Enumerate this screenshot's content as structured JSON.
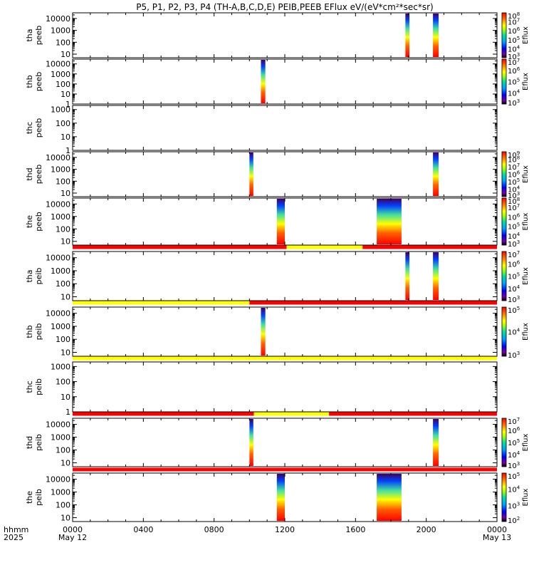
{
  "chart_data": {
    "type": "heatmap",
    "title": "P5, P1, P2, P3, P4 (TH-A,B,C,D,E) PEIB,PEEB EFlux eV/(eV*cm²*sec*sr)",
    "x_axis": {
      "label_line1": "hhmm",
      "label_line2": "2025",
      "range_hours": [
        0,
        24
      ],
      "ticks": [
        {
          "hour": 0,
          "label": "0000",
          "sublabel": "May 12"
        },
        {
          "hour": 4,
          "label": "0400",
          "sublabel": ""
        },
        {
          "hour": 8,
          "label": "0800",
          "sublabel": ""
        },
        {
          "hour": 12,
          "label": "1200",
          "sublabel": ""
        },
        {
          "hour": 16,
          "label": "1600",
          "sublabel": ""
        },
        {
          "hour": 20,
          "label": "2000",
          "sublabel": ""
        },
        {
          "hour": 24,
          "label": "0000",
          "sublabel": "May 13"
        }
      ]
    },
    "colorbar_label": "Eflux",
    "log_y": true,
    "panels": [
      {
        "probe": "tha",
        "instrument": "peeb",
        "ylim": [
          5,
          30000
        ],
        "yticks": [
          10,
          100,
          1000,
          10000
        ],
        "colorbar": {
          "min_exp": 3,
          "max_exp": 8
        },
        "bursts": [
          [
            18.82,
            19.05
          ],
          [
            20.38,
            20.7
          ]
        ]
      },
      {
        "probe": "thb",
        "instrument": "peeb",
        "ylim": [
          1,
          30000
        ],
        "yticks": [
          1,
          10,
          100,
          1000,
          10000
        ],
        "colorbar": {
          "min_exp": 3,
          "max_exp": 7
        },
        "bursts": [
          [
            10.65,
            10.9
          ]
        ]
      },
      {
        "probe": "thc",
        "instrument": "peeb",
        "ylim": [
          1,
          2000
        ],
        "yticks": [
          1,
          10,
          100,
          1000
        ],
        "colorbar": null,
        "bursts": []
      },
      {
        "probe": "thd",
        "instrument": "peeb",
        "ylim": [
          5,
          30000
        ],
        "yticks": [
          10,
          100,
          1000,
          10000
        ],
        "colorbar": {
          "min_exp": 3,
          "max_exp": 9
        },
        "bursts": [
          [
            10.0,
            10.22
          ],
          [
            20.38,
            20.7
          ]
        ]
      },
      {
        "probe": "the",
        "instrument": "peeb",
        "ylim": [
          5,
          30000
        ],
        "yticks": [
          10,
          100,
          1000,
          10000
        ],
        "colorbar": {
          "min_exp": 3,
          "max_exp": 8
        },
        "bursts": [
          [
            11.55,
            12.0
          ],
          [
            17.2,
            18.6
          ]
        ],
        "status_bar": [
          {
            "from": 0,
            "to": 12.1,
            "color": "red"
          },
          {
            "from": 12.1,
            "to": 16.4,
            "color": "yellow"
          },
          {
            "from": 16.4,
            "to": 24,
            "color": "red"
          }
        ]
      },
      {
        "probe": "tha",
        "instrument": "peib",
        "ylim": [
          5,
          30000
        ],
        "yticks": [
          10,
          100,
          1000,
          10000
        ],
        "colorbar": {
          "min_exp": 3,
          "max_exp": 7
        },
        "bursts": [
          [
            18.82,
            19.05
          ],
          [
            20.38,
            20.7
          ]
        ],
        "status_bar": [
          {
            "from": 0,
            "to": 10.0,
            "color": "yellow"
          },
          {
            "from": 10.0,
            "to": 24,
            "color": "red"
          }
        ]
      },
      {
        "probe": "thb",
        "instrument": "peib",
        "ylim": [
          5,
          30000
        ],
        "yticks": [
          10,
          100,
          1000,
          10000
        ],
        "colorbar": {
          "min_exp": 3,
          "max_exp": 5
        },
        "bursts": [
          [
            10.65,
            10.9
          ]
        ],
        "status_bar": [
          {
            "from": 0,
            "to": 24,
            "color": "yellow"
          }
        ]
      },
      {
        "probe": "thc",
        "instrument": "peib",
        "ylim": [
          1,
          2000
        ],
        "yticks": [
          1,
          10,
          100,
          1000
        ],
        "colorbar": null,
        "bursts": [],
        "status_bar": [
          {
            "from": 0,
            "to": 10.25,
            "color": "red"
          },
          {
            "from": 10.25,
            "to": 14.5,
            "color": "yellow"
          },
          {
            "from": 14.5,
            "to": 24,
            "color": "red"
          }
        ]
      },
      {
        "probe": "thd",
        "instrument": "peib",
        "ylim": [
          5,
          30000
        ],
        "yticks": [
          10,
          100,
          1000,
          10000
        ],
        "colorbar": {
          "min_exp": 3,
          "max_exp": 7
        },
        "bursts": [
          [
            10.0,
            10.22
          ],
          [
            20.38,
            20.7
          ]
        ],
        "status_bar": [
          {
            "from": 0,
            "to": 24,
            "color": "red"
          }
        ]
      },
      {
        "probe": "the",
        "instrument": "peib",
        "ylim": [
          5,
          30000
        ],
        "yticks": [
          10,
          100,
          1000,
          10000
        ],
        "colorbar": {
          "min_exp": 2,
          "max_exp": 5
        },
        "bursts": [
          [
            11.55,
            12.0
          ],
          [
            17.2,
            18.6
          ]
        ]
      }
    ]
  },
  "colors": {
    "red": "#ff0000",
    "yellow": "#ffff00"
  }
}
